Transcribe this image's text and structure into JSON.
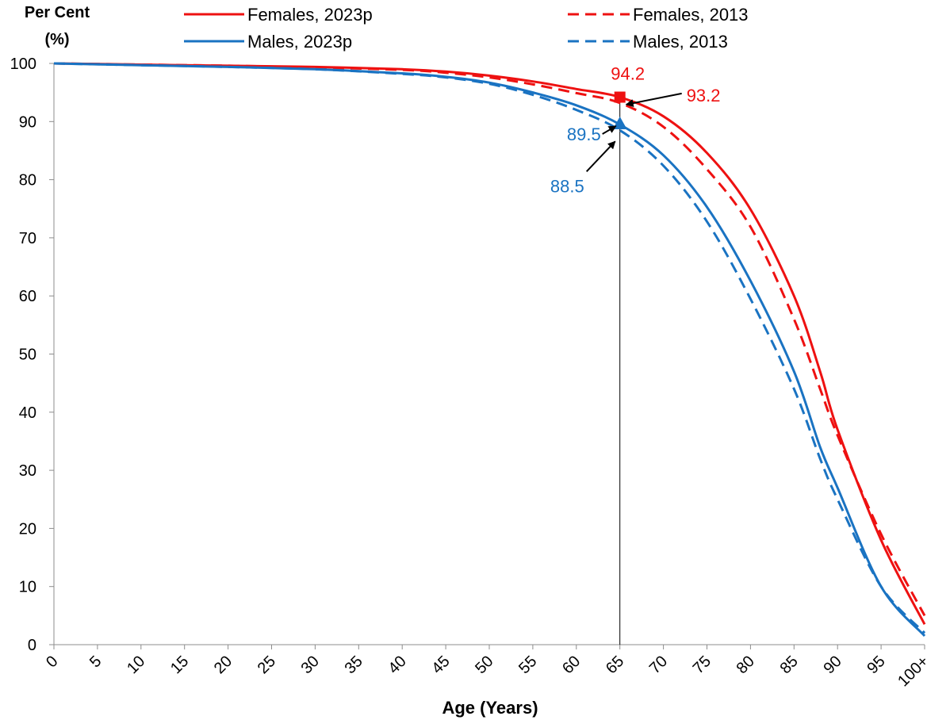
{
  "chart_data": {
    "type": "line",
    "ylabel_line1": "Per Cent",
    "ylabel_line2": "(%)",
    "xlabel": "Age (Years)",
    "ylim": [
      0,
      100
    ],
    "yticks": [
      0,
      10,
      20,
      30,
      40,
      50,
      60,
      70,
      80,
      90,
      100
    ],
    "xticks": [
      "0",
      "5",
      "10",
      "15",
      "20",
      "25",
      "30",
      "35",
      "40",
      "45",
      "50",
      "55",
      "60",
      "65",
      "70",
      "75",
      "80",
      "85",
      "90",
      "95",
      "100+"
    ],
    "x": [
      0,
      10,
      20,
      30,
      40,
      45,
      50,
      55,
      60,
      65,
      70,
      75,
      80,
      85,
      88,
      90,
      95,
      100
    ],
    "series": [
      {
        "name": "Females, 2023p",
        "color": "#ee1111",
        "dash": false,
        "values": [
          100,
          99.8,
          99.6,
          99.4,
          99.0,
          98.6,
          97.9,
          96.9,
          95.6,
          94.2,
          90.9,
          84.6,
          74.9,
          60.0,
          47.0,
          37.0,
          18.0,
          3.5
        ]
      },
      {
        "name": "Females, 2013",
        "color": "#ee1111",
        "dash": true,
        "values": [
          100,
          99.8,
          99.6,
          99.3,
          98.9,
          98.4,
          97.6,
          96.4,
          94.9,
          93.2,
          89.1,
          81.8,
          71.9,
          56.0,
          44.0,
          36.0,
          19.0,
          5.0
        ]
      },
      {
        "name": "Males, 2023p",
        "color": "#1a73c2",
        "dash": false,
        "values": [
          100,
          99.7,
          99.4,
          99.0,
          98.3,
          97.7,
          96.7,
          95.0,
          92.8,
          89.5,
          84.2,
          75.3,
          62.6,
          47.0,
          34.0,
          27.0,
          10.0,
          1.5
        ]
      },
      {
        "name": "Males, 2013",
        "color": "#1a73c2",
        "dash": true,
        "values": [
          100,
          99.7,
          99.4,
          99.0,
          98.2,
          97.6,
          96.5,
          94.6,
          92.0,
          88.5,
          82.4,
          72.8,
          59.5,
          44.0,
          32.0,
          25.0,
          10.0,
          2.0
        ]
      }
    ],
    "reference_line_x": 65,
    "annotations": [
      {
        "label": "94.2",
        "x": 65,
        "y": 94.2,
        "color": "#ee1111",
        "marker": "square"
      },
      {
        "label": "93.2",
        "x": 65,
        "y": 93.2,
        "color": "#ee1111",
        "marker": "none"
      },
      {
        "label": "89.5",
        "x": 65,
        "y": 89.5,
        "color": "#1a73c2",
        "marker": "triangle"
      },
      {
        "label": "88.5",
        "x": 65,
        "y": 88.5,
        "color": "#1a73c2",
        "marker": "none"
      }
    ]
  }
}
